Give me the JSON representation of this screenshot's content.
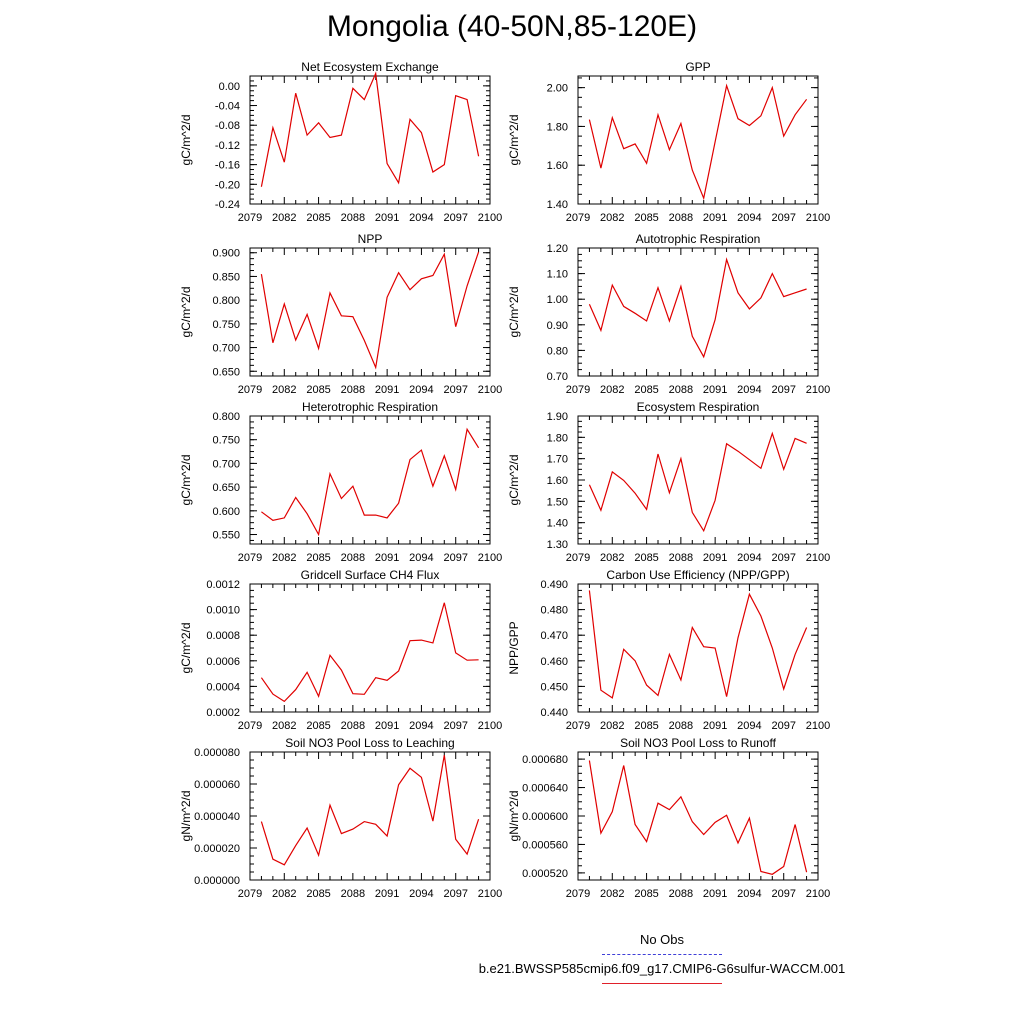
{
  "title": "Mongolia (40-50N,85-120E)",
  "legend": {
    "no_obs": "No Obs",
    "case": "b.e21.BWSSP585cmip6.f09_g17.CMIP6-G6sulfur-WACCM.001",
    "series_color": "#e00000",
    "no_obs_color": "#3f3fd8"
  },
  "chart_data": [
    {
      "type": "line",
      "title": "Net Ecosystem Exchange",
      "ylabel": "gC/m^2/d",
      "xlim": [
        2079,
        2100
      ],
      "ylim": [
        -0.24,
        0.02
      ],
      "xticks": [
        "2079",
        "2082",
        "2085",
        "2088",
        "2091",
        "2094",
        "2097",
        "2100"
      ],
      "yticks": [
        "0.00",
        "-0.04",
        "-0.08",
        "-0.12",
        "-0.16",
        "-0.20",
        "-0.24"
      ],
      "x": [
        2080,
        2081,
        2082,
        2083,
        2084,
        2085,
        2086,
        2087,
        2088,
        2089,
        2090,
        2091,
        2092,
        2093,
        2094,
        2095,
        2096,
        2097,
        2098,
        2099
      ],
      "values": [
        -0.205,
        -0.085,
        -0.155,
        -0.015,
        -0.1,
        -0.075,
        -0.105,
        -0.1,
        -0.005,
        -0.028,
        0.025,
        -0.158,
        -0.197,
        -0.068,
        -0.095,
        -0.175,
        -0.16,
        -0.02,
        -0.028,
        -0.143
      ]
    },
    {
      "type": "line",
      "title": "GPP",
      "ylabel": "gC/m^2/d",
      "xlim": [
        2079,
        2100
      ],
      "ylim": [
        1.4,
        2.06
      ],
      "xticks": [
        "2079",
        "2082",
        "2085",
        "2088",
        "2091",
        "2094",
        "2097",
        "2100"
      ],
      "yticks": [
        "2.00",
        "1.80",
        "1.60",
        "1.40"
      ],
      "x": [
        2080,
        2081,
        2082,
        2083,
        2084,
        2085,
        2086,
        2087,
        2088,
        2089,
        2090,
        2091,
        2092,
        2093,
        2094,
        2095,
        2096,
        2097,
        2098,
        2099
      ],
      "values": [
        1.835,
        1.585,
        1.845,
        1.685,
        1.71,
        1.61,
        1.86,
        1.68,
        1.815,
        1.575,
        1.43,
        1.72,
        2.01,
        1.84,
        1.805,
        1.855,
        2.0,
        1.75,
        1.86,
        1.94
      ]
    },
    {
      "type": "line",
      "title": "NPP",
      "ylabel": "gC/m^2/d",
      "xlim": [
        2079,
        2100
      ],
      "ylim": [
        0.64,
        0.91
      ],
      "xticks": [
        "2079",
        "2082",
        "2085",
        "2088",
        "2091",
        "2094",
        "2097",
        "2100"
      ],
      "yticks": [
        "0.900",
        "0.850",
        "0.800",
        "0.750",
        "0.700",
        "0.650"
      ],
      "x": [
        2080,
        2081,
        2082,
        2083,
        2084,
        2085,
        2086,
        2087,
        2088,
        2089,
        2090,
        2091,
        2092,
        2093,
        2094,
        2095,
        2096,
        2097,
        2098,
        2099
      ],
      "values": [
        0.855,
        0.71,
        0.792,
        0.716,
        0.77,
        0.698,
        0.815,
        0.767,
        0.765,
        0.715,
        0.658,
        0.806,
        0.858,
        0.822,
        0.845,
        0.852,
        0.897,
        0.744,
        0.83,
        0.902
      ]
    },
    {
      "type": "line",
      "title": "Autotrophic Respiration",
      "ylabel": "gC/m^2/d",
      "xlim": [
        2079,
        2100
      ],
      "ylim": [
        0.7,
        1.2
      ],
      "xticks": [
        "2079",
        "2082",
        "2085",
        "2088",
        "2091",
        "2094",
        "2097",
        "2100"
      ],
      "yticks": [
        "1.20",
        "1.10",
        "1.00",
        "0.90",
        "0.80",
        "0.70"
      ],
      "x": [
        2080,
        2081,
        2082,
        2083,
        2084,
        2085,
        2086,
        2087,
        2088,
        2089,
        2090,
        2091,
        2092,
        2093,
        2094,
        2095,
        2096,
        2097,
        2098,
        2099
      ],
      "values": [
        0.98,
        0.878,
        1.055,
        0.972,
        0.945,
        0.915,
        1.045,
        0.915,
        1.05,
        0.855,
        0.775,
        0.92,
        1.155,
        1.025,
        0.962,
        1.005,
        1.1,
        1.01,
        1.025,
        1.04
      ]
    },
    {
      "type": "line",
      "title": "Heterotrophic Respiration",
      "ylabel": "gC/m^2/d",
      "xlim": [
        2079,
        2100
      ],
      "ylim": [
        0.53,
        0.8
      ],
      "xticks": [
        "2079",
        "2082",
        "2085",
        "2088",
        "2091",
        "2094",
        "2097",
        "2100"
      ],
      "yticks": [
        "0.800",
        "0.750",
        "0.700",
        "0.650",
        "0.600",
        "0.550"
      ],
      "x": [
        2080,
        2081,
        2082,
        2083,
        2084,
        2085,
        2086,
        2087,
        2088,
        2089,
        2090,
        2091,
        2092,
        2093,
        2094,
        2095,
        2096,
        2097,
        2098,
        2099
      ],
      "values": [
        0.598,
        0.58,
        0.585,
        0.628,
        0.594,
        0.55,
        0.678,
        0.626,
        0.652,
        0.591,
        0.591,
        0.585,
        0.616,
        0.708,
        0.728,
        0.652,
        0.716,
        0.645,
        0.772,
        0.733
      ]
    },
    {
      "type": "line",
      "title": "Ecosystem Respiration",
      "ylabel": "gC/m^2/d",
      "xlim": [
        2079,
        2100
      ],
      "ylim": [
        1.3,
        1.9
      ],
      "xticks": [
        "2079",
        "2082",
        "2085",
        "2088",
        "2091",
        "2094",
        "2097",
        "2100"
      ],
      "yticks": [
        "1.90",
        "1.80",
        "1.70",
        "1.60",
        "1.50",
        "1.40",
        "1.30"
      ],
      "x": [
        2080,
        2081,
        2082,
        2083,
        2084,
        2085,
        2086,
        2087,
        2088,
        2089,
        2090,
        2091,
        2092,
        2093,
        2094,
        2095,
        2096,
        2097,
        2098,
        2099
      ],
      "values": [
        1.578,
        1.458,
        1.638,
        1.598,
        1.538,
        1.462,
        1.722,
        1.54,
        1.7,
        1.448,
        1.362,
        1.505,
        1.77,
        1.735,
        1.695,
        1.655,
        1.818,
        1.65,
        1.795,
        1.772
      ]
    },
    {
      "type": "line",
      "title": "Gridcell Surface CH4 Flux",
      "ylabel": "gC/m^2/d",
      "xlim": [
        2079,
        2100
      ],
      "ylim": [
        0.0002,
        0.0012
      ],
      "xticks": [
        "2079",
        "2082",
        "2085",
        "2088",
        "2091",
        "2094",
        "2097",
        "2100"
      ],
      "yticks": [
        "0.0012",
        "0.0010",
        "0.0008",
        "0.0006",
        "0.0004",
        "0.0002"
      ],
      "x": [
        2080,
        2081,
        2082,
        2083,
        2084,
        2085,
        2086,
        2087,
        2088,
        2089,
        2090,
        2091,
        2092,
        2093,
        2094,
        2095,
        2096,
        2097,
        2098,
        2099
      ],
      "values": [
        0.000468,
        0.00034,
        0.000283,
        0.000375,
        0.00051,
        0.000323,
        0.000643,
        0.000527,
        0.000343,
        0.000338,
        0.000468,
        0.000448,
        0.00052,
        0.000757,
        0.000762,
        0.00074,
        0.001053,
        0.000662,
        0.000605,
        0.000608
      ]
    },
    {
      "type": "line",
      "title": "Carbon Use Efficiency (NPP/GPP)",
      "ylabel": "NPP/GPP",
      "xlim": [
        2079,
        2100
      ],
      "ylim": [
        0.44,
        0.49
      ],
      "xticks": [
        "2079",
        "2082",
        "2085",
        "2088",
        "2091",
        "2094",
        "2097",
        "2100"
      ],
      "yticks": [
        "0.490",
        "0.480",
        "0.470",
        "0.460",
        "0.450",
        "0.440"
      ],
      "x": [
        2080,
        2081,
        2082,
        2083,
        2084,
        2085,
        2086,
        2087,
        2088,
        2089,
        2090,
        2091,
        2092,
        2093,
        2094,
        2095,
        2096,
        2097,
        2098,
        2099
      ],
      "values": [
        0.4875,
        0.4485,
        0.4455,
        0.4645,
        0.46,
        0.4505,
        0.4465,
        0.4625,
        0.4525,
        0.473,
        0.4655,
        0.465,
        0.446,
        0.469,
        0.486,
        0.4775,
        0.465,
        0.449,
        0.4625,
        0.473
      ]
    },
    {
      "type": "line",
      "title": "Soil NO3 Pool Loss to Leaching",
      "ylabel": "gN/m^2/d",
      "xlim": [
        2079,
        2100
      ],
      "ylim": [
        0.0,
        8e-05
      ],
      "xticks": [
        "2079",
        "2082",
        "2085",
        "2088",
        "2091",
        "2094",
        "2097",
        "2100"
      ],
      "yticks": [
        "0.000080",
        "0.000060",
        "0.000040",
        "0.000020",
        "0.000000"
      ],
      "x": [
        2080,
        2081,
        2082,
        2083,
        2084,
        2085,
        2086,
        2087,
        2088,
        2089,
        2090,
        2091,
        2092,
        2093,
        2094,
        2095,
        2096,
        2097,
        2098,
        2099
      ],
      "values": [
        3.65e-05,
        1.3e-05,
        9.5e-06,
        2.15e-05,
        3.25e-05,
        1.55e-05,
        4.68e-05,
        2.9e-05,
        3.18e-05,
        3.65e-05,
        3.48e-05,
        2.75e-05,
        5.95e-05,
        6.98e-05,
        6.42e-05,
        3.68e-05,
        7.8e-05,
        2.55e-05,
        1.62e-05,
        3.8e-05
      ]
    },
    {
      "type": "line",
      "title": "Soil NO3 Pool Loss to Runoff",
      "ylabel": "gN/m^2/d",
      "xlim": [
        2079,
        2100
      ],
      "ylim": [
        0.00051,
        0.00069
      ],
      "xticks": [
        "2079",
        "2082",
        "2085",
        "2088",
        "2091",
        "2094",
        "2097",
        "2100"
      ],
      "yticks": [
        "0.000680",
        "0.000640",
        "0.000600",
        "0.000560",
        "0.000520"
      ],
      "x": [
        2080,
        2081,
        2082,
        2083,
        2084,
        2085,
        2086,
        2087,
        2088,
        2089,
        2090,
        2091,
        2092,
        2093,
        2094,
        2095,
        2096,
        2097,
        2098,
        2099
      ],
      "values": [
        0.000678,
        0.000576,
        0.000606,
        0.000671,
        0.000588,
        0.000564,
        0.000618,
        0.000609,
        0.000627,
        0.000592,
        0.000574,
        0.000591,
        0.000601,
        0.000562,
        0.000597,
        0.000522,
        0.000518,
        0.000529,
        0.000588,
        0.000521
      ]
    }
  ]
}
